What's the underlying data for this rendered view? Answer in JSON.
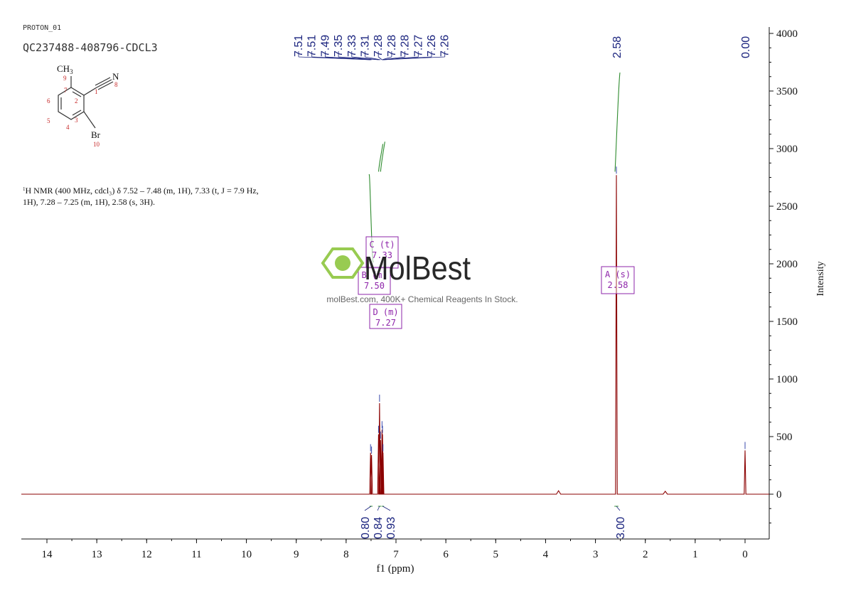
{
  "header": {
    "proton_label": "PROTON_01",
    "sample_id": "QC237488-408796-CDCL3"
  },
  "molecule": {
    "ch3": "CH",
    "ch3_sub": "3",
    "n": "N",
    "br": "Br",
    "atom_numbers": [
      "9",
      "7",
      "1",
      "8",
      "6",
      "2",
      "5",
      "3",
      "4",
      "10"
    ]
  },
  "nmr_summary": {
    "sup": "1",
    "line1": "H NMR (400 MHz, cdcl₃) δ 7.52 – 7.48 (m, 1H), 7.33 (t, J = 7.9 Hz,",
    "line2": "1H), 7.28 – 7.25 (m, 1H), 2.58 (s, 3H)."
  },
  "watermark": {
    "brand": "MolBest",
    "tagline": "molBest.com, 400K+ Chemical Reagents In Stock."
  },
  "colors": {
    "spectrum": "#8b0000",
    "integral": "#2e8b2e",
    "peak_label": "#1a237e",
    "multiplet_box": "#8e24aa",
    "brand_green": "#8dc63f"
  },
  "chart_data": {
    "type": "line",
    "xlabel": "f1 (ppm)",
    "ylabel": "Intensity",
    "xlim": [
      14.5,
      -0.5
    ],
    "ylim": [
      -400,
      4100
    ],
    "x_ticks": [
      "14",
      "13",
      "12",
      "11",
      "10",
      "9",
      "8",
      "7",
      "6",
      "5",
      "4",
      "3",
      "2",
      "1",
      "0"
    ],
    "y_ticks": [
      "0",
      "500",
      "1000",
      "1500",
      "2000",
      "2500",
      "3000",
      "3500",
      "4000"
    ],
    "peak_labels": [
      "7.51",
      "7.51",
      "7.49",
      "7.35",
      "7.33",
      "7.31",
      "7.28",
      "7.28",
      "7.28",
      "7.27",
      "7.26",
      "7.26",
      "2.58",
      "0.00"
    ],
    "peaks": [
      {
        "ppm": 7.51,
        "height": 360
      },
      {
        "ppm": 7.49,
        "height": 340
      },
      {
        "ppm": 7.35,
        "height": 520
      },
      {
        "ppm": 7.33,
        "height": 790
      },
      {
        "ppm": 7.31,
        "height": 470
      },
      {
        "ppm": 7.28,
        "height": 560
      },
      {
        "ppm": 7.27,
        "height": 520
      },
      {
        "ppm": 7.26,
        "height": 360
      },
      {
        "ppm": 2.58,
        "height": 2770
      },
      {
        "ppm": 0.0,
        "height": 380
      },
      {
        "ppm": 3.74,
        "height": 30
      },
      {
        "ppm": 1.6,
        "height": 25
      }
    ],
    "integrals": [
      {
        "value": "0.80",
        "from": 7.53,
        "to": 7.47
      },
      {
        "value": "0.84",
        "from": 7.36,
        "to": 7.3
      },
      {
        "value": "0.93",
        "from": 7.29,
        "to": 7.24
      },
      {
        "value": "3.00",
        "from": 2.62,
        "to": 2.54
      }
    ],
    "multiplets": [
      {
        "label": "C (t)",
        "shift": "7.33"
      },
      {
        "label": "B (m)",
        "shift": "7.50"
      },
      {
        "label": "D (m)",
        "shift": "7.27"
      },
      {
        "label": "A (s)",
        "shift": "2.58"
      }
    ]
  }
}
